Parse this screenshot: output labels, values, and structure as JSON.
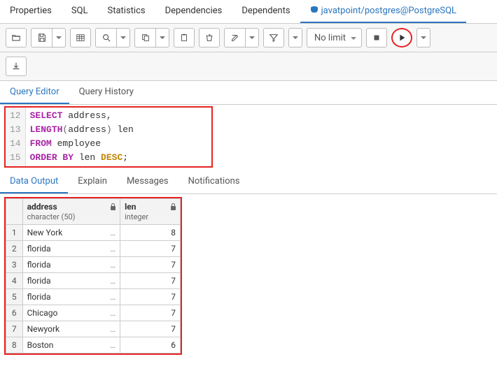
{
  "topTabs": {
    "properties": "Properties",
    "sql": "SQL",
    "statistics": "Statistics",
    "dependencies": "Dependencies",
    "dependents": "Dependents",
    "connection": "javatpoint/postgres@PostgreSQL"
  },
  "toolbar": {
    "limit": "No limit"
  },
  "editorTabs": {
    "queryEditor": "Query Editor",
    "queryHistory": "Query History"
  },
  "code": {
    "lines": [
      12,
      13,
      14,
      15
    ],
    "l12": {
      "kw": "SELECT",
      "rest": " address,"
    },
    "l13": {
      "fn": "LENGTH",
      "arg": "address",
      "alias": " len"
    },
    "l14": {
      "kw": "FROM",
      "rest": " employee"
    },
    "l15": {
      "kw1": "ORDER BY",
      "mid": " len ",
      "kw2": "DESC",
      "end": ";"
    }
  },
  "outputTabs": {
    "dataOutput": "Data Output",
    "explain": "Explain",
    "messages": "Messages",
    "notifications": "Notifications"
  },
  "grid": {
    "col1": {
      "name": "address",
      "type": "character (50)"
    },
    "col2": {
      "name": "len",
      "type": "integer"
    },
    "rows": [
      {
        "n": "1",
        "a": "New York",
        "l": "8"
      },
      {
        "n": "2",
        "a": "florida",
        "l": "7"
      },
      {
        "n": "3",
        "a": "florida",
        "l": "7"
      },
      {
        "n": "4",
        "a": "florida",
        "l": "7"
      },
      {
        "n": "5",
        "a": "florida",
        "l": "7"
      },
      {
        "n": "6",
        "a": "Chicago",
        "l": "7"
      },
      {
        "n": "7",
        "a": "Newyork",
        "l": "7"
      },
      {
        "n": "8",
        "a": "Boston",
        "l": "6"
      }
    ]
  }
}
